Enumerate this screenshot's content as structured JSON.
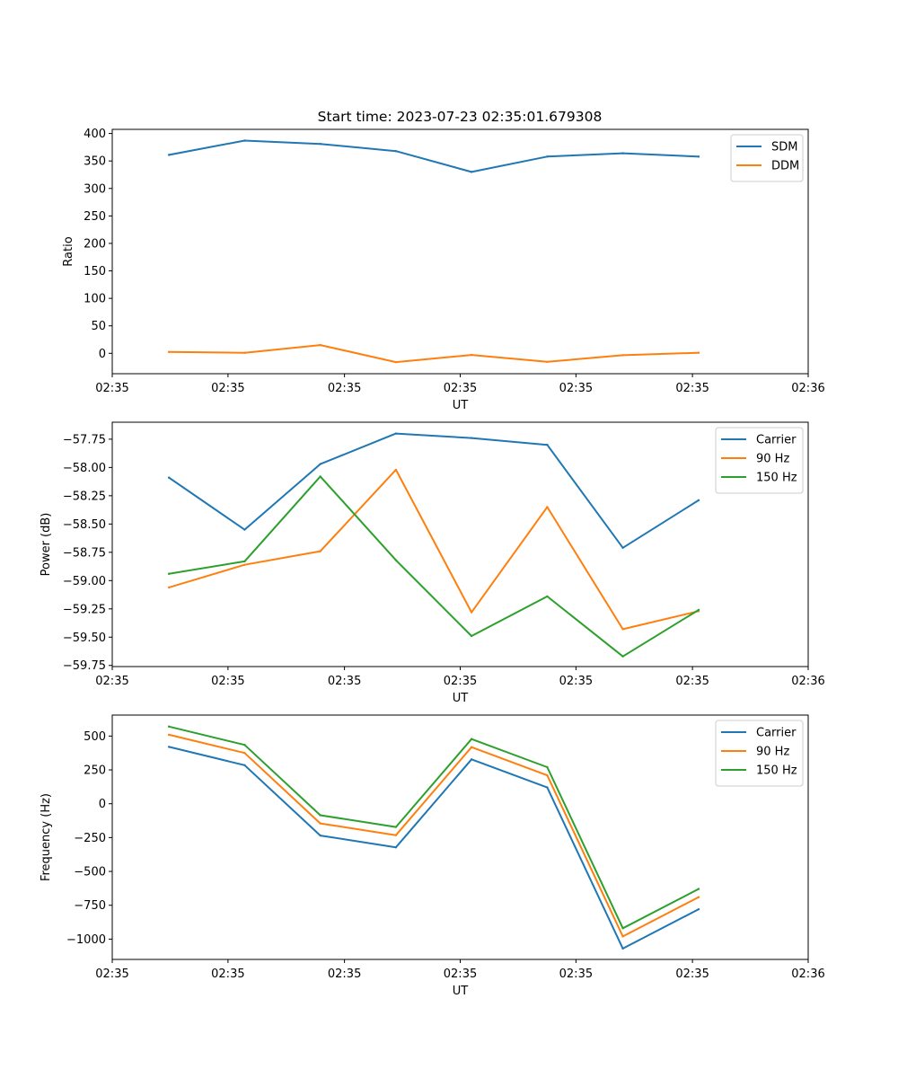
{
  "title": "Start time: 2023-07-23 02:35:01.679308",
  "colors": {
    "blue": "#1f77b4",
    "orange": "#ff7f0e",
    "green": "#2ca02c"
  },
  "chart_data": [
    {
      "type": "line",
      "ylabel": "Ratio",
      "xlabel": "UT",
      "x": [
        1,
        2,
        3,
        4,
        5,
        6,
        7,
        8
      ],
      "xlim": [
        0.25,
        9.45
      ],
      "xticks": [
        0.25,
        1.78,
        3.32,
        4.85,
        6.38,
        7.92,
        9.45
      ],
      "xtick_labels": [
        "02:35",
        "02:35",
        "02:35",
        "02:35",
        "02:35",
        "02:35",
        "02:36"
      ],
      "ylim": [
        -37.1,
        407.5
      ],
      "yticks": [
        0,
        50,
        100,
        150,
        200,
        250,
        300,
        350,
        400
      ],
      "ytick_labels": [
        "0",
        "50",
        "100",
        "150",
        "200",
        "250",
        "300",
        "350",
        "400"
      ],
      "legend": "top-right",
      "series": [
        {
          "name": "SDM",
          "color": "#1f77b4",
          "values": [
            361,
            387,
            381,
            368,
            330,
            358,
            364,
            358
          ]
        },
        {
          "name": "DDM",
          "color": "#ff7f0e",
          "values": [
            2.5,
            1,
            15,
            -16,
            -3,
            -15.5,
            -3.5,
            1
          ]
        }
      ]
    },
    {
      "type": "line",
      "ylabel": "Power (dB)",
      "xlabel": "UT",
      "x": [
        1,
        2,
        3,
        4,
        5,
        6,
        7,
        8
      ],
      "xlim": [
        0.25,
        9.45
      ],
      "xticks": [
        0.25,
        1.78,
        3.32,
        4.85,
        6.38,
        7.92,
        9.45
      ],
      "xtick_labels": [
        "02:35",
        "02:35",
        "02:35",
        "02:35",
        "02:35",
        "02:35",
        "02:36"
      ],
      "ylim": [
        -59.76,
        -57.6
      ],
      "yticks": [
        -59.75,
        -59.5,
        -59.25,
        -59.0,
        -58.75,
        -58.5,
        -58.25,
        -58.0,
        -57.75
      ],
      "ytick_labels": [
        "−59.75",
        "−59.50",
        "−59.25",
        "−59.00",
        "−58.75",
        "−58.50",
        "−58.25",
        "−58.00",
        "−57.75"
      ],
      "legend": "top-right",
      "series": [
        {
          "name": "Carrier",
          "color": "#1f77b4",
          "values": [
            -58.09,
            -58.55,
            -57.97,
            -57.7,
            -57.74,
            -57.8,
            -58.71,
            -58.29
          ]
        },
        {
          "name": "90 Hz",
          "color": "#ff7f0e",
          "values": [
            -59.06,
            -58.86,
            -58.74,
            -58.02,
            -59.28,
            -58.35,
            -59.43,
            -59.27
          ]
        },
        {
          "name": "150 Hz",
          "color": "#2ca02c",
          "values": [
            -58.94,
            -58.83,
            -58.08,
            -58.82,
            -59.49,
            -59.14,
            -59.67,
            -59.26
          ]
        }
      ]
    },
    {
      "type": "line",
      "ylabel": "Frequency (Hz)",
      "xlabel": "UT",
      "x": [
        1,
        2,
        3,
        4,
        5,
        6,
        7,
        8
      ],
      "xlim": [
        0.25,
        9.45
      ],
      "xticks": [
        0.25,
        1.78,
        3.32,
        4.85,
        6.38,
        7.92,
        9.45
      ],
      "xtick_labels": [
        "02:35",
        "02:35",
        "02:35",
        "02:35",
        "02:35",
        "02:35",
        "02:36"
      ],
      "ylim": [
        -1150,
        655
      ],
      "yticks": [
        -1000,
        -750,
        -500,
        -250,
        0,
        250,
        500
      ],
      "ytick_labels": [
        "−1000",
        "−750",
        "−500",
        "−250",
        "0",
        "250",
        "500"
      ],
      "legend": "top-right",
      "series": [
        {
          "name": "Carrier",
          "color": "#1f77b4",
          "values": [
            420,
            285,
            -235,
            -322,
            328,
            120,
            -1070,
            -780
          ]
        },
        {
          "name": "90 Hz",
          "color": "#ff7f0e",
          "values": [
            510,
            375,
            -145,
            -232,
            418,
            210,
            -980,
            -690
          ]
        },
        {
          "name": "150 Hz",
          "color": "#2ca02c",
          "values": [
            570,
            435,
            -85,
            -172,
            478,
            270,
            -920,
            -630
          ]
        }
      ]
    }
  ]
}
